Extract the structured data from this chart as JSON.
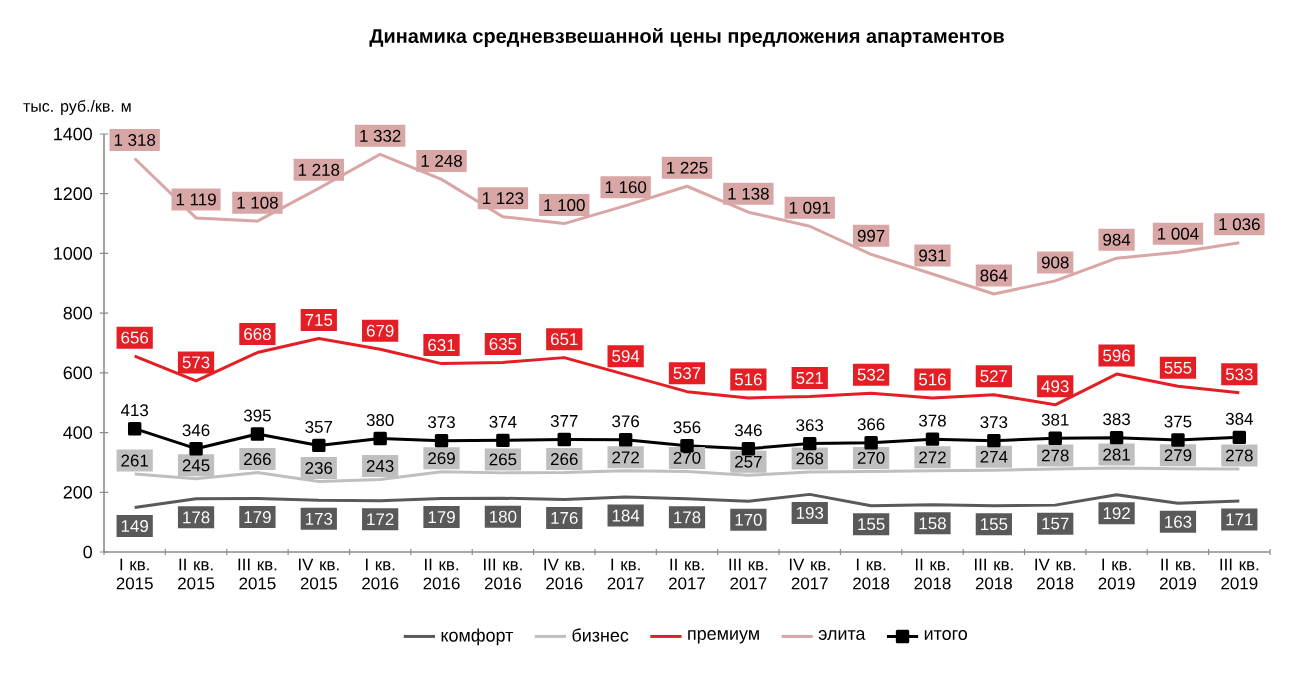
{
  "chart_data": {
    "type": "line",
    "title": "Динамика средневзвешанной цены предложения апартаментов",
    "ylabel": "тыс. руб./кв. м",
    "categories": [
      "I кв. 2015",
      "II кв. 2015",
      "III кв. 2015",
      "IV кв. 2015",
      "I кв. 2016",
      "II кв. 2016",
      "III кв. 2016",
      "IV кв. 2016",
      "I кв. 2017",
      "II кв. 2017",
      "III кв. 2017",
      "IV кв. 2017",
      "I кв. 2018",
      "II кв. 2018",
      "III кв. 2018",
      "IV кв. 2018",
      "I кв. 2019",
      "II кв. 2019",
      "III кв. 2019"
    ],
    "ylim": [
      0,
      1400
    ],
    "yticks": [
      0,
      200,
      400,
      600,
      800,
      1000,
      1200,
      1400
    ],
    "grid": false,
    "legend": "bottom",
    "line_style": "solid",
    "series": [
      {
        "name": "комфорт",
        "color": "#595959",
        "values": [
          149,
          178,
          179,
          173,
          172,
          179,
          180,
          176,
          184,
          178,
          170,
          193,
          155,
          158,
          155,
          157,
          192,
          163,
          171
        ],
        "value_labels": [
          "149",
          "178",
          "179",
          "173",
          "172",
          "179",
          "180",
          "176",
          "184",
          "178",
          "170",
          "193",
          "155",
          "158",
          "155",
          "157",
          "192",
          "163",
          "171"
        ]
      },
      {
        "name": "бизнес",
        "color": "#bfbfbf",
        "values": [
          261,
          245,
          266,
          236,
          243,
          269,
          265,
          266,
          272,
          270,
          257,
          268,
          270,
          272,
          274,
          278,
          281,
          279,
          278
        ],
        "value_labels": [
          "261",
          "245",
          "266",
          "236",
          "243",
          "269",
          "265",
          "266",
          "272",
          "270",
          "257",
          "268",
          "270",
          "272",
          "274",
          "278",
          "281",
          "279",
          "278"
        ]
      },
      {
        "name": "премиум",
        "color": "#e31e24",
        "values": [
          656,
          573,
          668,
          715,
          679,
          631,
          635,
          651,
          594,
          537,
          516,
          521,
          532,
          516,
          527,
          493,
          596,
          555,
          533
        ],
        "value_labels": [
          "656",
          "573",
          "668",
          "715",
          "679",
          "631",
          "635",
          "651",
          "594",
          "537",
          "516",
          "521",
          "532",
          "516",
          "527",
          "493",
          "596",
          "555",
          "533"
        ]
      },
      {
        "name": "элита",
        "color": "#d9a6a6",
        "values": [
          1318,
          1119,
          1108,
          1218,
          1332,
          1248,
          1123,
          1100,
          1160,
          1225,
          1138,
          1091,
          997,
          931,
          864,
          908,
          984,
          1004,
          1036
        ],
        "value_labels": [
          "1 318",
          "1 119",
          "1 108",
          "1 218",
          "1 332",
          "1 248",
          "1 123",
          "1 100",
          "1 160",
          "1 225",
          "1 138",
          "1 091",
          "997",
          "931",
          "864",
          "908",
          "984",
          "1 004",
          "1 036"
        ]
      },
      {
        "name": "итого",
        "color": "#000000",
        "marker": "square",
        "values": [
          413,
          346,
          395,
          357,
          380,
          373,
          374,
          377,
          376,
          356,
          346,
          363,
          366,
          378,
          373,
          381,
          383,
          375,
          384
        ],
        "value_labels": [
          "413",
          "346",
          "395",
          "357",
          "380",
          "373",
          "374",
          "377",
          "376",
          "356",
          "346",
          "363",
          "366",
          "378",
          "373",
          "381",
          "383",
          "375",
          "384"
        ]
      }
    ]
  }
}
